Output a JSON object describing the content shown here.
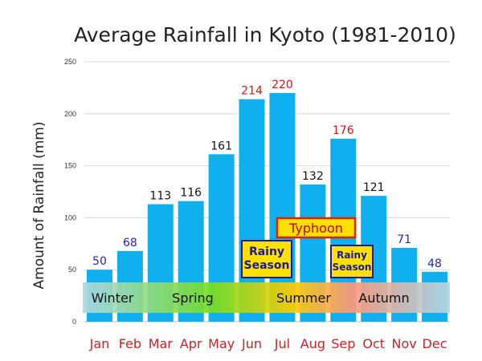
{
  "chart_data": {
    "type": "bar",
    "title": "Average Rainfall in Kyoto  (1981-2010)",
    "xlabel": "",
    "ylabel": "Amount of  Rainfall  (mm)",
    "ylim": [
      0,
      250
    ],
    "yticks": [
      "0",
      "50",
      "100",
      "150",
      "200",
      "250"
    ],
    "grid": true,
    "categories": [
      "Jan",
      "Feb",
      "Mar",
      "Apr",
      "May",
      "Jun",
      "Jul",
      "Aug",
      "Sep",
      "Oct",
      "Nov",
      "Dec"
    ],
    "values": [
      50,
      68,
      113,
      116,
      161,
      214,
      220,
      132,
      176,
      121,
      71,
      48
    ],
    "data_labels": [
      "50",
      "68",
      "113",
      "116",
      "161",
      "214",
      "220",
      "132",
      "176",
      "121",
      "71",
      "48"
    ],
    "colors": {
      "bar": "#10b0ee",
      "label_red": "#dd1111",
      "label_blue": "#2222cc",
      "label_black": "#111111",
      "tick_month": "#cc2222",
      "callout_fill": "#ffe000",
      "callout_border_blue": "#1a1a99",
      "callout_border_red": "#dd2200"
    },
    "label_color_keys": [
      "label_blue",
      "label_blue",
      "label_black",
      "label_black",
      "label_black",
      "label_red",
      "label_red",
      "label_black",
      "label_red",
      "label_black",
      "label_blue",
      "label_blue"
    ],
    "seasons": {
      "band_colors": [
        "#add8e6",
        "#77dd22",
        "#ffcc00",
        "#ff9977",
        "#add8e6"
      ],
      "labels": [
        "Winter",
        "Spring",
        "Summer",
        "Autumn"
      ]
    },
    "annotations": [
      {
        "kind": "rainy",
        "lines": [
          "Rainy",
          "Season"
        ],
        "month": "Jun"
      },
      {
        "kind": "rainy",
        "lines": [
          "Rainy",
          "Season"
        ],
        "month": "Sep"
      },
      {
        "kind": "typhoon",
        "lines": [
          "Typhoon"
        ],
        "month": "Aug"
      }
    ]
  }
}
